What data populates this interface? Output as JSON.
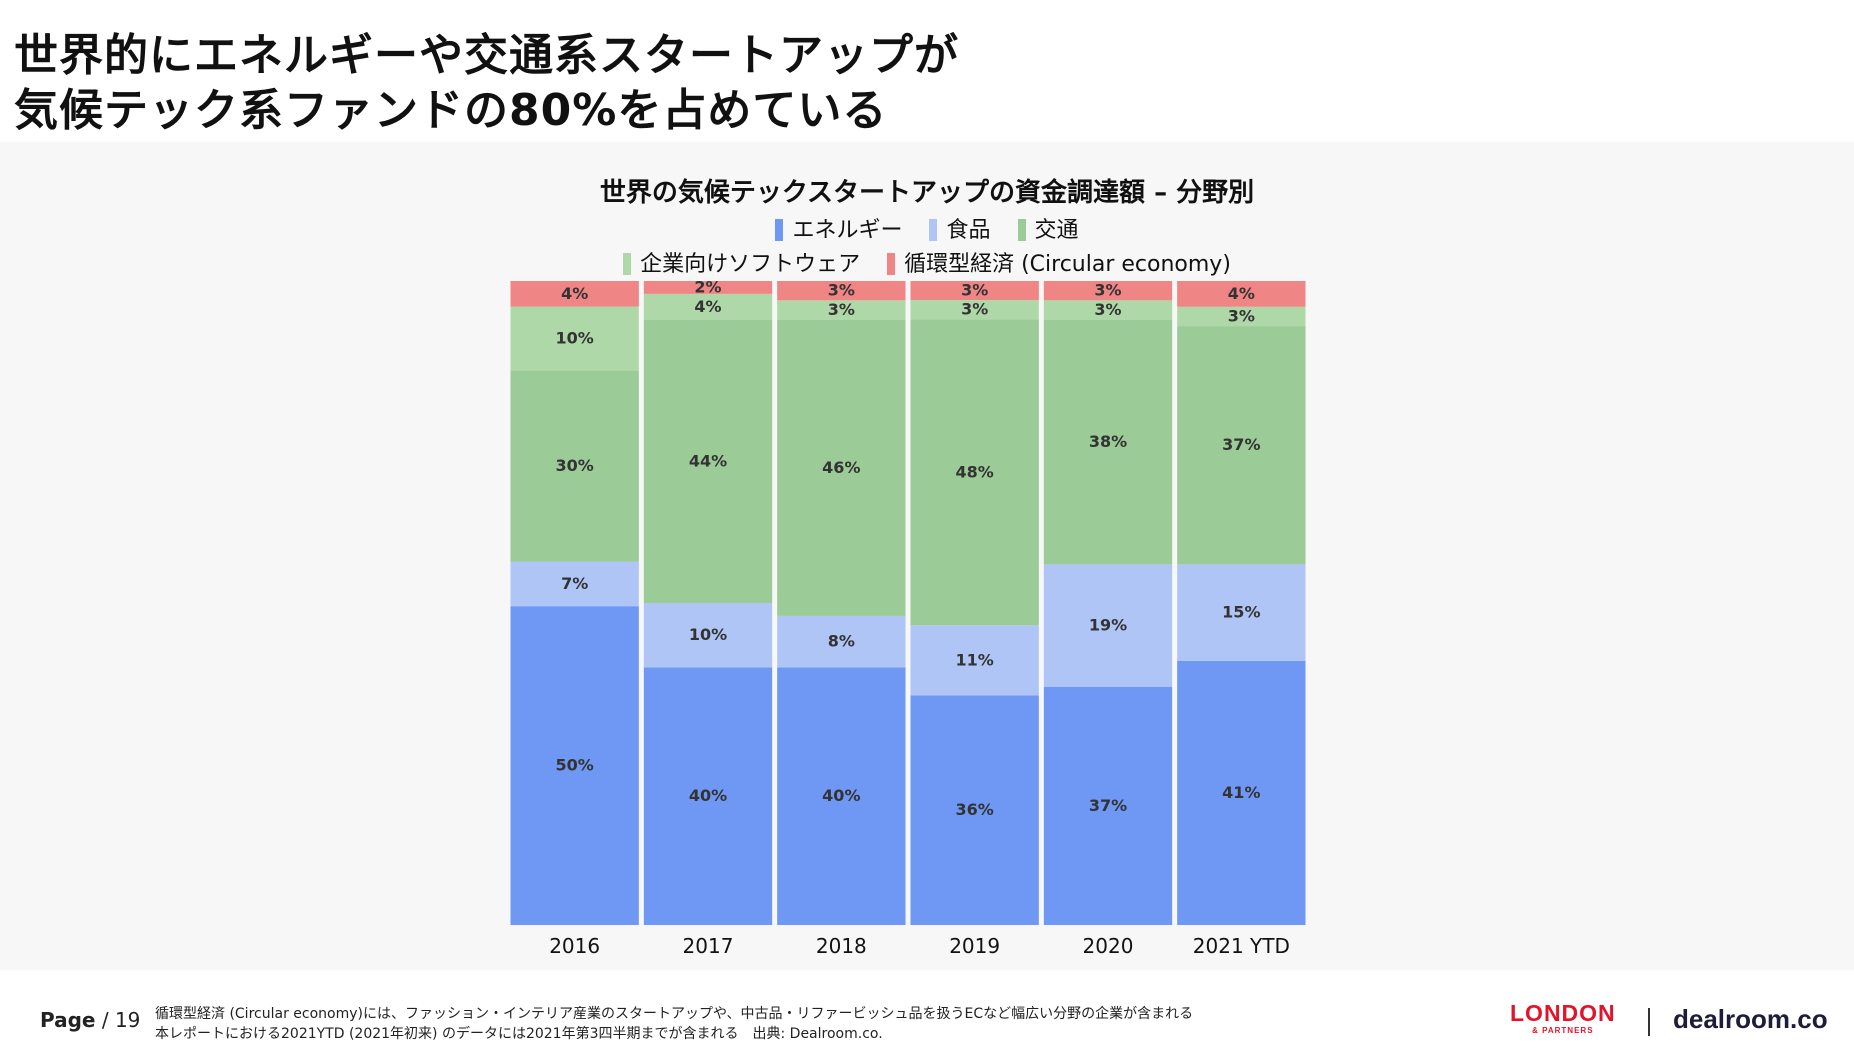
{
  "page": {
    "title_lines": [
      "世界的にエネルギーや交通系スタートアップが",
      "気候テック系ファンドの80%を占めている"
    ],
    "page_label": "Page",
    "page_number": "/ 19",
    "footnote_lines": [
      "循環型経済 (Circular economy)には、ファッション・インテリア産業のスタートアップや、中古品・リファービッシュ品を扱うECなど幅広い分野の企業が含まれる",
      "本レポートにおける2021YTD (2021年初来) のデータには2021年第3四半期までが含まれる　出典: Dealroom.co."
    ],
    "brand_london": "LONDON",
    "brand_london_sub": "& PARTNERS",
    "brand_dealroom": "dealroom.co"
  },
  "chart_data": {
    "type": "bar",
    "stacked": true,
    "normalized": true,
    "title": "世界の気候テックスタートアップの資金調達額 – 分野別",
    "categories": [
      "2016",
      "2017",
      "2018",
      "2019",
      "2020",
      "2021 YTD"
    ],
    "series": [
      {
        "name": "エネルギー",
        "color": "#6f97f4",
        "values": [
          50,
          40,
          40,
          36,
          37,
          41
        ]
      },
      {
        "name": "食品",
        "color": "#aec5f6",
        "values": [
          7,
          10,
          8,
          11,
          19,
          15
        ]
      },
      {
        "name": "交通",
        "color": "#9bcb96",
        "values": [
          30,
          44,
          46,
          48,
          38,
          37
        ]
      },
      {
        "name": "企業向けソフトウェア",
        "color": "#afd8a9",
        "values": [
          10,
          4,
          3,
          3,
          3,
          3
        ]
      },
      {
        "name": "循環型経済 (Circular economy)",
        "color": "#ef8585",
        "values": [
          4,
          2,
          3,
          3,
          3,
          4
        ]
      }
    ],
    "ylim": [
      0,
      100
    ],
    "legend_position": "top"
  }
}
